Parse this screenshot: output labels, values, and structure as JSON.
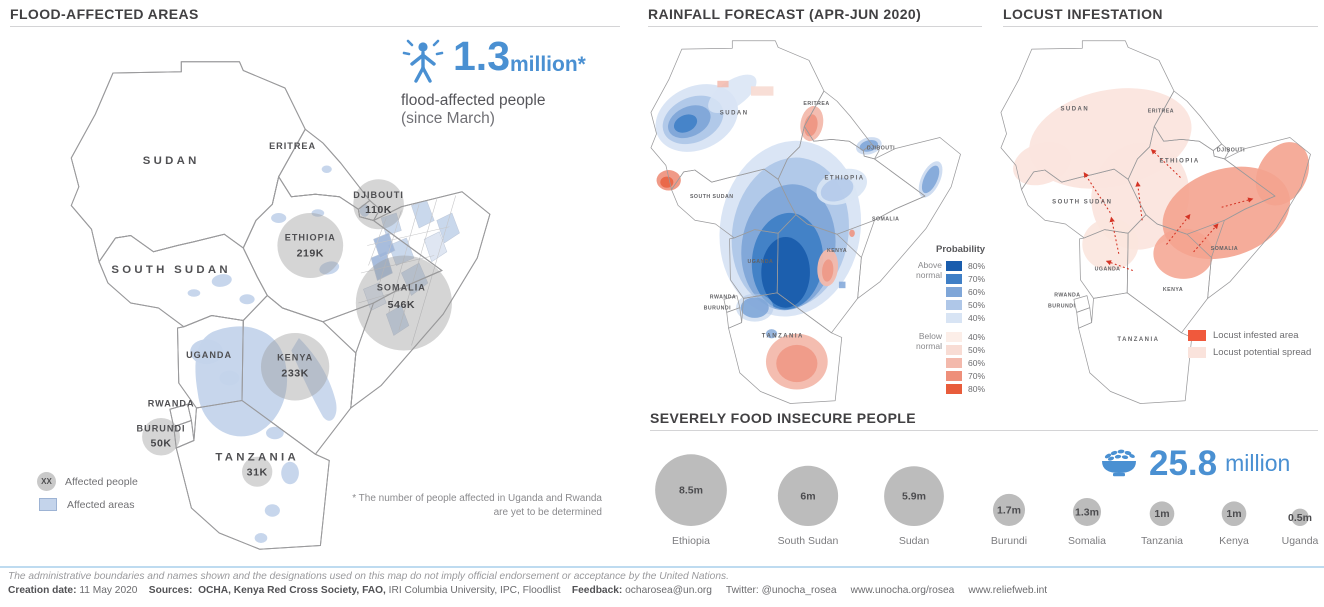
{
  "flood_panel": {
    "title": "FLOOD-AFFECTED AREAS",
    "stat": {
      "value": "1.3",
      "unit": "million*",
      "line1": "flood-affected people",
      "line2": "(since March)"
    },
    "legend": {
      "people_symbol": "XX",
      "people_label": "Affected people",
      "areas_label": "Affected areas"
    },
    "footnote_line1": "* The number of people affected in Uganda and Rwanda",
    "footnote_line2": "are yet to be determined",
    "countries": [
      {
        "name": "SUDAN"
      },
      {
        "name": "ERITREA"
      },
      {
        "name": "DJIBOUTI",
        "value": "110K"
      },
      {
        "name": "ETHIOPIA",
        "value": "219K"
      },
      {
        "name": "SOUTH SUDAN"
      },
      {
        "name": "SOMALIA",
        "value": "546K"
      },
      {
        "name": "UGANDA"
      },
      {
        "name": "KENYA",
        "value": "233K"
      },
      {
        "name": "RWANDA"
      },
      {
        "name": "BURUNDI",
        "value": "50K"
      },
      {
        "name": "TANZANIA",
        "value": "31K"
      }
    ]
  },
  "rainfall_panel": {
    "title": "RAINFALL FORECAST (APR-JUN 2020)",
    "legend": {
      "title": "Probability",
      "above_label": "Above normal",
      "below_label": "Below normal",
      "above": [
        {
          "pct": "80%",
          "color": "#1a5dad"
        },
        {
          "pct": "70%",
          "color": "#3f7fc6"
        },
        {
          "pct": "60%",
          "color": "#7fa6d8"
        },
        {
          "pct": "50%",
          "color": "#afc7e8"
        },
        {
          "pct": "40%",
          "color": "#d8e4f4"
        }
      ],
      "below": [
        {
          "pct": "40%",
          "color": "#fceee8"
        },
        {
          "pct": "50%",
          "color": "#f8dcd4"
        },
        {
          "pct": "60%",
          "color": "#f3b9ac"
        },
        {
          "pct": "70%",
          "color": "#ee8f7a"
        },
        {
          "pct": "80%",
          "color": "#e85c3b"
        }
      ]
    },
    "countries": [
      {
        "name": "SUDAN"
      },
      {
        "name": "ERITREA"
      },
      {
        "name": "DJIBOUTI"
      },
      {
        "name": "ETHIOPIA"
      },
      {
        "name": "SOUTH SUDAN"
      },
      {
        "name": "SOMALIA"
      },
      {
        "name": "KENYA"
      },
      {
        "name": "UGANDA"
      },
      {
        "name": "RWANDA"
      },
      {
        "name": "BURUNDI"
      },
      {
        "name": "TANZANIA"
      }
    ]
  },
  "locust_panel": {
    "title": "LOCUST INFESTATION",
    "legend": [
      {
        "label": "Locust infested area",
        "color": "#f0593c"
      },
      {
        "label": "Locust potential spread",
        "color": "#fae3dc"
      }
    ],
    "countries": [
      {
        "name": "SUDAN"
      },
      {
        "name": "ERITREA"
      },
      {
        "name": "DJIBOUTI"
      },
      {
        "name": "ETHIOPIA"
      },
      {
        "name": "SOUTH SUDAN"
      },
      {
        "name": "SOMALIA"
      },
      {
        "name": "KENYA"
      },
      {
        "name": "UGANDA"
      },
      {
        "name": "RWANDA"
      },
      {
        "name": "BURUNDI"
      },
      {
        "name": "TANZANIA"
      }
    ]
  },
  "food_panel": {
    "title": "SEVERELY FOOD INSECURE PEOPLE",
    "stat": {
      "value": "25.8",
      "unit": "million"
    }
  },
  "chart_data": [
    {
      "type": "bubble",
      "title": "SEVERELY FOOD INSECURE PEOPLE",
      "categories": [
        "Ethiopia",
        "South Sudan",
        "Sudan",
        "Burundi",
        "Somalia",
        "Tanzania",
        "Kenya",
        "Uganda"
      ],
      "values_millions": [
        8.5,
        6,
        5.9,
        1.7,
        1.3,
        1,
        1,
        0.5
      ],
      "value_labels": [
        "8.5m",
        "6m",
        "5.9m",
        "1.7m",
        "1.3m",
        "1m",
        "1m",
        "0.5m"
      ],
      "total": "25.8 million",
      "legend_position": "top-right",
      "bubble_color": "#bcbcbc"
    },
    {
      "type": "map-bubbles",
      "title": "FLOOD-AFFECTED AREAS (since March)",
      "categories": [
        "Djibouti",
        "Ethiopia",
        "Somalia",
        "Kenya",
        "Burundi",
        "Tanzania"
      ],
      "values_thousands": [
        110,
        219,
        546,
        233,
        50,
        31
      ],
      "value_labels": [
        "110K",
        "219K",
        "546K",
        "233K",
        "50K",
        "31K"
      ],
      "total": "1.3 million*"
    }
  ],
  "colors": {
    "accent_blue": "#4a90d2",
    "flood_area_blue": "#c4d4eb",
    "bubble_gray": "#bcbcbc",
    "map_circle_gray": "#a3a3a3",
    "locust_infested": "#f4a38f",
    "locust_spread": "#fbe5de",
    "footer_line_blue": "#bedbf0"
  },
  "footer": {
    "disclaimer": "The administrative boundaries and names shown and the designations used on this map do not imply official endorsement or acceptance by the United Nations.",
    "meta": [
      {
        "text": "Creation date:",
        "bold": true
      },
      {
        "text": " 11 May 2020    ",
        "bold": false
      },
      {
        "text": "Sources:",
        "bold": true
      },
      {
        "text": "  ",
        "bold": false
      },
      {
        "text": "OCHA, Kenya Red Cross Society, FAO,",
        "bold": true
      },
      {
        "text": " IRI Columbia University, IPC, Floodlist    ",
        "bold": false
      },
      {
        "text": "Feedback:",
        "bold": true
      },
      {
        "text": " ocharosea@un.org     Twitter: @unocha_rosea     www.unocha.org/rosea     www.reliefweb.int",
        "bold": false
      }
    ]
  }
}
